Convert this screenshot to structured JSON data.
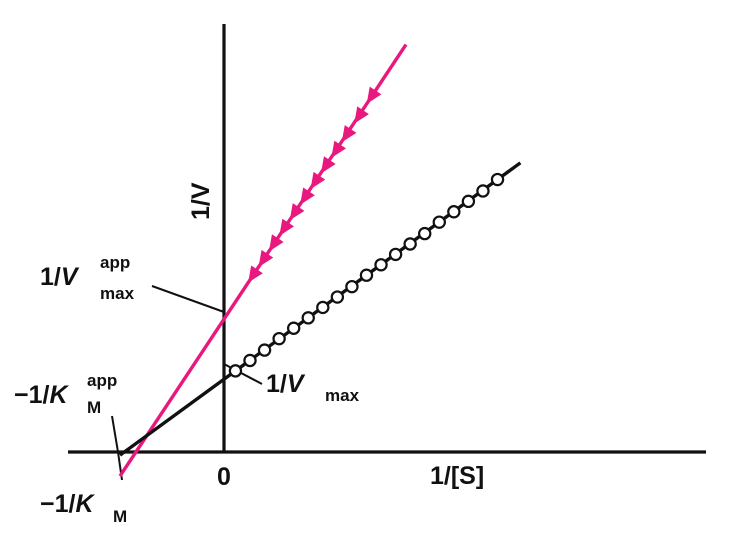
{
  "chart_data": {
    "type": "line",
    "title": "",
    "xlabel": "1/[S]",
    "ylabel": "1/V",
    "origin_tick": "0",
    "xlim": [
      -1.0,
      5.0
    ],
    "ylim": [
      0,
      3.9
    ],
    "x_intercept": -1.0,
    "series": [
      {
        "color": "#e8187f",
        "marker": "filled-triangle",
        "x_range": [
          -1.0,
          1.75
        ],
        "points": [
          {
            "x": 0.28,
            "y": 1.7
          },
          {
            "x": 0.38,
            "y": 1.85
          },
          {
            "x": 0.48,
            "y": 2.0
          },
          {
            "x": 0.58,
            "y": 2.15
          },
          {
            "x": 0.68,
            "y": 2.3
          },
          {
            "x": 0.78,
            "y": 2.45
          },
          {
            "x": 0.88,
            "y": 2.6
          },
          {
            "x": 0.98,
            "y": 2.75
          },
          {
            "x": 1.08,
            "y": 2.9
          },
          {
            "x": 1.18,
            "y": 3.05
          },
          {
            "x": 1.3,
            "y": 3.23
          },
          {
            "x": 1.42,
            "y": 3.42
          }
        ]
      },
      {
        "color": "#111111",
        "marker": "open-circle",
        "x_range": [
          -1.0,
          2.85
        ],
        "points": [
          {
            "x": 0.11,
            "y": 0.78
          },
          {
            "x": 0.25,
            "y": 0.88
          },
          {
            "x": 0.39,
            "y": 0.98
          },
          {
            "x": 0.53,
            "y": 1.09
          },
          {
            "x": 0.67,
            "y": 1.19
          },
          {
            "x": 0.81,
            "y": 1.29
          },
          {
            "x": 0.95,
            "y": 1.39
          },
          {
            "x": 1.09,
            "y": 1.49
          },
          {
            "x": 1.23,
            "y": 1.59
          },
          {
            "x": 1.37,
            "y": 1.7
          },
          {
            "x": 1.51,
            "y": 1.8
          },
          {
            "x": 1.65,
            "y": 1.9
          },
          {
            "x": 1.79,
            "y": 2.0
          },
          {
            "x": 1.93,
            "y": 2.1
          },
          {
            "x": 2.07,
            "y": 2.21
          },
          {
            "x": 2.21,
            "y": 2.31
          },
          {
            "x": 2.35,
            "y": 2.41
          },
          {
            "x": 2.49,
            "y": 2.51
          },
          {
            "x": 2.63,
            "y": 2.62
          }
        ]
      }
    ],
    "annotations": [
      {
        "name": "vmax-app",
        "main": "1/",
        "var": "V",
        "sup": "app",
        "sub": "max",
        "at": {
          "x": 0,
          "y": 1.5
        }
      },
      {
        "name": "vmax",
        "main": "1/",
        "var": "V",
        "sup": "",
        "sub": "max",
        "at": {
          "x": 0,
          "y": 0.75
        }
      },
      {
        "name": "km-app",
        "main": "−1/",
        "var": "K",
        "sup": "app",
        "sub": "M",
        "at": {
          "x": -1.0,
          "y": 0
        }
      },
      {
        "name": "km",
        "main": "−1/",
        "var": "K",
        "sup": "",
        "sub": "M",
        "at": {
          "x": -1.0,
          "y": 0
        }
      }
    ]
  }
}
